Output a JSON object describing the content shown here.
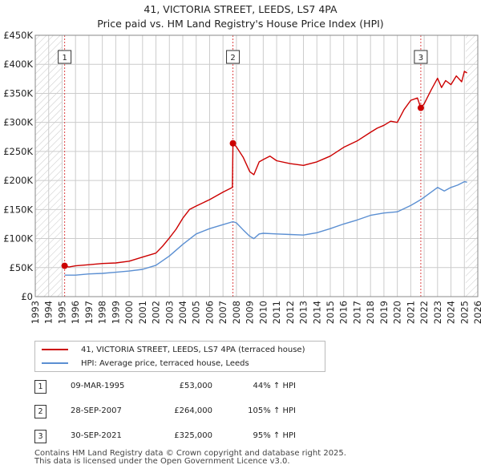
{
  "title_line1": "41, VICTORIA STREET, LEEDS, LS7 4PA",
  "title_line2": "Price paid vs. HM Land Registry's House Price Index (HPI)",
  "colors": {
    "property": "#cc0000",
    "hpi": "#5b8fd2",
    "grid": "#cccccc",
    "marker_line": "#dd4444"
  },
  "legend": {
    "property_label": "41, VICTORIA STREET, LEEDS, LS7 4PA (terraced house)",
    "hpi_label": "HPI: Average price, terraced house, Leeds"
  },
  "sales": [
    {
      "num": "1",
      "date": "09-MAR-1995",
      "price": "£53,000",
      "hpi_change": "44% ↑ HPI"
    },
    {
      "num": "2",
      "date": "28-SEP-2007",
      "price": "£264,000",
      "hpi_change": "105% ↑ HPI"
    },
    {
      "num": "3",
      "date": "30-SEP-2021",
      "price": "£325,000",
      "hpi_change": "95% ↑ HPI"
    }
  ],
  "footer": {
    "line1": "Contains HM Land Registry data © Crown copyright and database right 2025.",
    "line2": "This data is licensed under the Open Government Licence v3.0."
  },
  "chart_data": {
    "type": "line",
    "title": "41, VICTORIA STREET, LEEDS, LS7 4PA — Price paid vs. HM Land Registry's House Price Index (HPI)",
    "xlabel": "",
    "ylabel": "",
    "xlim": [
      1993,
      2026
    ],
    "ylim": [
      0,
      450000
    ],
    "y_ticks": [
      0,
      50000,
      100000,
      150000,
      200000,
      250000,
      300000,
      350000,
      400000,
      450000
    ],
    "y_tick_labels": [
      "£0",
      "£50K",
      "£100K",
      "£150K",
      "£200K",
      "£250K",
      "£300K",
      "£350K",
      "£400K",
      "£450K"
    ],
    "x_ticks": [
      1993,
      1994,
      1995,
      1996,
      1997,
      1998,
      1999,
      2000,
      2001,
      2002,
      2003,
      2004,
      2005,
      2006,
      2007,
      2008,
      2009,
      2010,
      2011,
      2012,
      2013,
      2014,
      2015,
      2016,
      2017,
      2018,
      2019,
      2020,
      2021,
      2022,
      2023,
      2024,
      2025,
      2026
    ],
    "hatched_regions": [
      [
        1993,
        1995.0
      ],
      [
        2025.1,
        2026
      ]
    ],
    "sale_markers": [
      {
        "label": "1",
        "x": 1995.19,
        "y": 53000
      },
      {
        "label": "2",
        "x": 2007.74,
        "y": 264000
      },
      {
        "label": "3",
        "x": 2021.75,
        "y": 325000
      }
    ],
    "series": [
      {
        "name": "41, VICTORIA STREET, LEEDS, LS7 4PA (terraced house)",
        "x": [
          1995.19,
          1995.5,
          1996,
          1997,
          1998,
          1999,
          2000,
          2001,
          2002,
          2002.5,
          2003,
          2003.5,
          2004,
          2004.5,
          2005,
          2006,
          2007,
          2007.7,
          2007.74,
          2008,
          2008.5,
          2009,
          2009.3,
          2009.7,
          2010,
          2010.5,
          2011,
          2012,
          2013,
          2014,
          2014.5,
          2015,
          2016,
          2017,
          2018,
          2018.5,
          2019,
          2019.5,
          2020,
          2020.5,
          2021,
          2021.5,
          2021.75,
          2022,
          2022.5,
          2023,
          2023.3,
          2023.6,
          2024,
          2024.4,
          2024.8,
          2025.0,
          2025.2
        ],
        "values": [
          53000,
          51000,
          53000,
          55000,
          57000,
          58000,
          61000,
          68000,
          75000,
          87000,
          101000,
          116000,
          135000,
          150000,
          156000,
          167000,
          180000,
          188000,
          264000,
          258000,
          240000,
          215000,
          210000,
          232000,
          236000,
          242000,
          234000,
          229000,
          226000,
          232000,
          237000,
          242000,
          257000,
          268000,
          283000,
          290000,
          295000,
          302000,
          300000,
          322000,
          338000,
          342000,
          325000,
          332000,
          355000,
          376000,
          360000,
          372000,
          365000,
          380000,
          370000,
          388000,
          385000
        ]
      },
      {
        "name": "HPI: Average price, terraced house, Leeds",
        "x": [
          1995.19,
          1996,
          1997,
          1998,
          1999,
          2000,
          2001,
          2002,
          2003,
          2004,
          2005,
          2006,
          2007,
          2007.74,
          2008,
          2008.5,
          2009,
          2009.3,
          2009.7,
          2010,
          2011,
          2012,
          2013,
          2014,
          2015,
          2016,
          2017,
          2018,
          2019,
          2020,
          2021,
          2021.75,
          2022,
          2023,
          2023.5,
          2024,
          2024.5,
          2025,
          2025.2
        ],
        "values": [
          37000,
          37000,
          39000,
          40000,
          42000,
          44000,
          47000,
          54000,
          70000,
          90000,
          108000,
          117000,
          124000,
          129000,
          127000,
          115000,
          104000,
          100000,
          108000,
          109000,
          108000,
          107000,
          106000,
          110000,
          117000,
          125000,
          132000,
          140000,
          144000,
          146000,
          157000,
          167000,
          171000,
          188000,
          182000,
          188000,
          192000,
          198000,
          197000
        ]
      }
    ]
  }
}
